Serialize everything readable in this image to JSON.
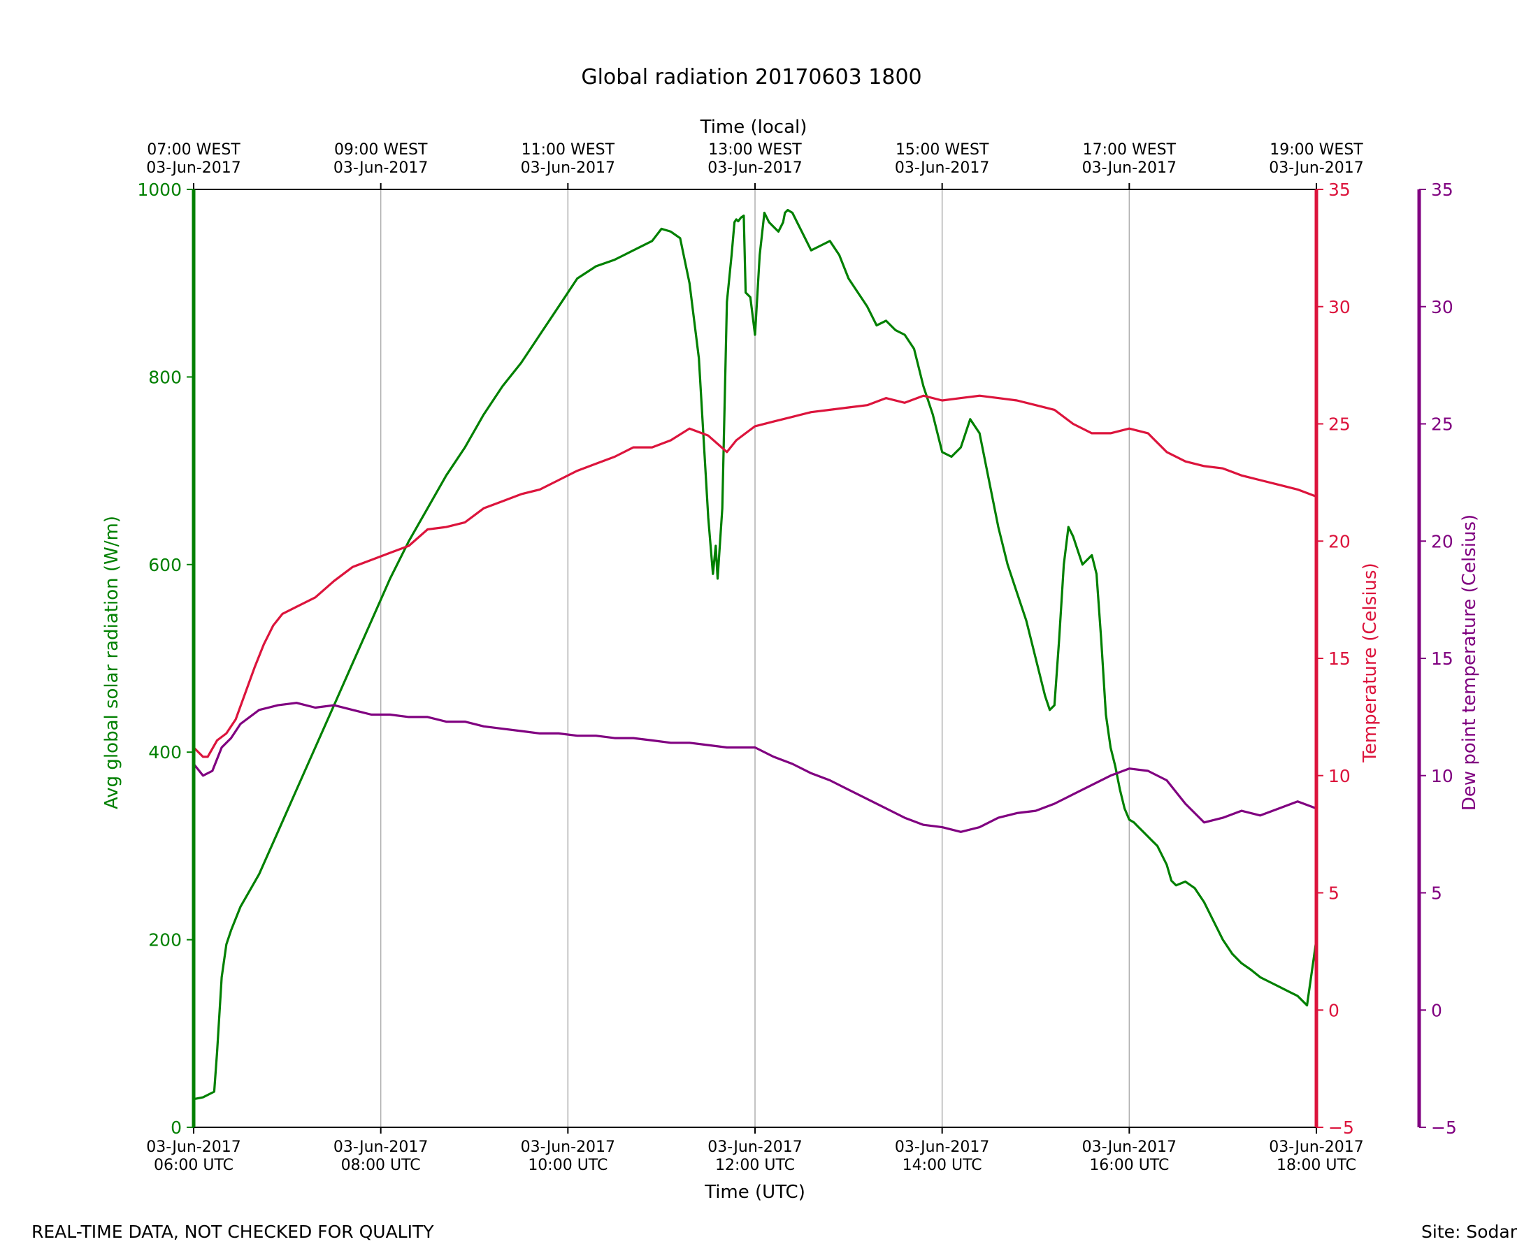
{
  "title": "Global radiation 20170603 1800",
  "footer": {
    "note": "REAL-TIME DATA, NOT CHECKED FOR QUALITY",
    "site": "Site: Sodar"
  },
  "colors": {
    "radiation": "#008000",
    "temperature": "#dc143c",
    "dewpoint": "#800080",
    "grid": "#b0b0b0"
  },
  "chart_data": {
    "type": "line",
    "title": "Global radiation 20170603 1800",
    "xlabel": "Time (UTC)",
    "x2label": "Time (local)",
    "xlim": [
      6,
      18
    ],
    "grid": "vertical",
    "xticks": [
      6,
      8,
      10,
      12,
      14,
      16,
      18
    ],
    "xtick_labels": [
      [
        "03-Jun-2017",
        "06:00 UTC"
      ],
      [
        "03-Jun-2017",
        "08:00 UTC"
      ],
      [
        "03-Jun-2017",
        "10:00 UTC"
      ],
      [
        "03-Jun-2017",
        "12:00 UTC"
      ],
      [
        "03-Jun-2017",
        "14:00 UTC"
      ],
      [
        "03-Jun-2017",
        "16:00 UTC"
      ],
      [
        "03-Jun-2017",
        "18:00 UTC"
      ]
    ],
    "x2tick_labels": [
      [
        "07:00 WEST",
        "03-Jun-2017"
      ],
      [
        "09:00 WEST",
        "03-Jun-2017"
      ],
      [
        "11:00 WEST",
        "03-Jun-2017"
      ],
      [
        "13:00 WEST",
        "03-Jun-2017"
      ],
      [
        "15:00 WEST",
        "03-Jun-2017"
      ],
      [
        "17:00 WEST",
        "03-Jun-2017"
      ],
      [
        "19:00 WEST",
        "03-Jun-2017"
      ]
    ],
    "axes": {
      "radiation": {
        "label": "Avg global solar radiation (W/m)",
        "ylim": [
          0,
          1000
        ],
        "ticks": [
          0,
          200,
          400,
          600,
          800,
          1000
        ]
      },
      "temperature": {
        "label": "Temperature (Celsius)",
        "ylim": [
          -5,
          35
        ],
        "ticks": [
          -5,
          0,
          5,
          10,
          15,
          20,
          25,
          30,
          35
        ],
        "tick_labels": [
          "−5",
          "0",
          "5",
          "10",
          "15",
          "20",
          "25",
          "30",
          "35"
        ]
      },
      "dewpoint": {
        "label": "Dew point temperature (Celsius)",
        "ylim": [
          -5,
          35
        ],
        "ticks": [
          -5,
          0,
          5,
          10,
          15,
          20,
          25,
          30,
          35
        ],
        "tick_labels": [
          "−5",
          "0",
          "5",
          "10",
          "15",
          "20",
          "25",
          "30",
          "35"
        ]
      }
    },
    "series": [
      {
        "name": "Avg global solar radiation",
        "axis": "radiation",
        "x": [
          6.0,
          6.1,
          6.22,
          6.25,
          6.3,
          6.35,
          6.4,
          6.5,
          6.7,
          6.9,
          7.1,
          7.3,
          7.5,
          7.7,
          7.9,
          8.1,
          8.3,
          8.5,
          8.7,
          8.9,
          9.1,
          9.3,
          9.5,
          9.7,
          9.9,
          10.1,
          10.3,
          10.5,
          10.7,
          10.9,
          11.0,
          11.1,
          11.2,
          11.3,
          11.4,
          11.5,
          11.55,
          11.58,
          11.6,
          11.65,
          11.7,
          11.75,
          11.78,
          11.8,
          11.82,
          11.85,
          11.88,
          11.9,
          11.95,
          12.0,
          12.05,
          12.1,
          12.15,
          12.2,
          12.25,
          12.3,
          12.32,
          12.35,
          12.4,
          12.45,
          12.5,
          12.6,
          12.7,
          12.8,
          12.9,
          13.0,
          13.1,
          13.2,
          13.3,
          13.4,
          13.5,
          13.6,
          13.7,
          13.8,
          13.9,
          14.0,
          14.1,
          14.2,
          14.3,
          14.4,
          14.5,
          14.6,
          14.7,
          14.8,
          14.9,
          15.0,
          15.1,
          15.15,
          15.2,
          15.25,
          15.3,
          15.35,
          15.4,
          15.45,
          15.5,
          15.6,
          15.65,
          15.7,
          15.75,
          15.8,
          15.85,
          15.9,
          15.95,
          16.0,
          16.05,
          16.1,
          16.15,
          16.2,
          16.25,
          16.3,
          16.35,
          16.4,
          16.45,
          16.5,
          16.6,
          16.7,
          16.8,
          16.9,
          17.0,
          17.1,
          17.2,
          17.3,
          17.4,
          17.5,
          17.6,
          17.7,
          17.8,
          17.9,
          18.0
        ],
        "values": [
          30,
          32,
          38,
          80,
          160,
          195,
          210,
          235,
          270,
          315,
          360,
          405,
          450,
          495,
          540,
          585,
          625,
          660,
          695,
          725,
          760,
          790,
          815,
          845,
          875,
          905,
          918,
          925,
          935,
          945,
          958,
          955,
          948,
          900,
          820,
          650,
          590,
          620,
          585,
          660,
          880,
          930,
          965,
          968,
          966,
          970,
          972,
          890,
          885,
          845,
          930,
          975,
          965,
          960,
          955,
          965,
          975,
          978,
          975,
          965,
          955,
          935,
          940,
          945,
          930,
          905,
          890,
          875,
          855,
          860,
          850,
          845,
          830,
          790,
          760,
          720,
          715,
          725,
          755,
          740,
          690,
          640,
          600,
          570,
          540,
          500,
          460,
          445,
          450,
          520,
          600,
          640,
          630,
          615,
          600,
          610,
          590,
          520,
          440,
          405,
          385,
          360,
          340,
          328,
          325,
          320,
          315,
          310,
          305,
          300,
          290,
          280,
          263,
          258,
          262,
          255,
          240,
          220,
          200,
          185,
          175,
          168,
          160,
          155,
          150,
          145,
          140,
          130,
          200
        ]
      },
      {
        "name": "Temperature",
        "axis": "temperature",
        "x": [
          6.0,
          6.1,
          6.15,
          6.25,
          6.35,
          6.45,
          6.55,
          6.65,
          6.75,
          6.85,
          6.95,
          7.1,
          7.3,
          7.5,
          7.7,
          7.9,
          8.1,
          8.3,
          8.5,
          8.7,
          8.9,
          9.1,
          9.3,
          9.5,
          9.7,
          9.9,
          10.1,
          10.3,
          10.5,
          10.7,
          10.9,
          11.1,
          11.3,
          11.5,
          11.7,
          11.8,
          11.9,
          12.0,
          12.2,
          12.4,
          12.6,
          12.8,
          13.0,
          13.2,
          13.4,
          13.6,
          13.8,
          14.0,
          14.2,
          14.4,
          14.6,
          14.8,
          15.0,
          15.2,
          15.4,
          15.6,
          15.8,
          16.0,
          16.2,
          16.4,
          16.6,
          16.8,
          17.0,
          17.2,
          17.4,
          17.6,
          17.8,
          18.0
        ],
        "values": [
          11.2,
          10.8,
          10.8,
          11.5,
          11.8,
          12.4,
          13.5,
          14.6,
          15.6,
          16.4,
          16.9,
          17.2,
          17.6,
          18.3,
          18.9,
          19.2,
          19.5,
          19.8,
          20.5,
          20.6,
          20.8,
          21.4,
          21.7,
          22.0,
          22.2,
          22.6,
          23.0,
          23.3,
          23.6,
          24.0,
          24.0,
          24.3,
          24.8,
          24.5,
          23.8,
          24.3,
          24.6,
          24.9,
          25.1,
          25.3,
          25.5,
          25.6,
          25.7,
          25.8,
          26.1,
          25.9,
          26.2,
          26.0,
          26.1,
          26.2,
          26.1,
          26.0,
          25.8,
          25.6,
          25.0,
          24.6,
          24.6,
          24.8,
          24.6,
          23.8,
          23.4,
          23.2,
          23.1,
          22.8,
          22.6,
          22.4,
          22.2,
          21.9
        ]
      },
      {
        "name": "Dew point temperature",
        "axis": "dewpoint",
        "x": [
          6.0,
          6.1,
          6.2,
          6.3,
          6.4,
          6.5,
          6.7,
          6.9,
          7.1,
          7.3,
          7.5,
          7.7,
          7.9,
          8.1,
          8.3,
          8.5,
          8.7,
          8.9,
          9.1,
          9.3,
          9.5,
          9.7,
          9.9,
          10.1,
          10.3,
          10.5,
          10.7,
          10.9,
          11.1,
          11.3,
          11.5,
          11.7,
          11.9,
          12.0,
          12.2,
          12.4,
          12.6,
          12.8,
          13.0,
          13.2,
          13.4,
          13.6,
          13.8,
          14.0,
          14.2,
          14.4,
          14.6,
          14.8,
          15.0,
          15.2,
          15.4,
          15.6,
          15.8,
          16.0,
          16.2,
          16.4,
          16.6,
          16.8,
          17.0,
          17.2,
          17.4,
          17.6,
          17.8,
          18.0
        ],
        "values": [
          10.5,
          10.0,
          10.2,
          11.2,
          11.6,
          12.2,
          12.8,
          13.0,
          13.1,
          12.9,
          13.0,
          12.8,
          12.6,
          12.6,
          12.5,
          12.5,
          12.3,
          12.3,
          12.1,
          12.0,
          11.9,
          11.8,
          11.8,
          11.7,
          11.7,
          11.6,
          11.6,
          11.5,
          11.4,
          11.4,
          11.3,
          11.2,
          11.2,
          11.2,
          10.8,
          10.5,
          10.1,
          9.8,
          9.4,
          9.0,
          8.6,
          8.2,
          7.9,
          7.8,
          7.6,
          7.8,
          8.2,
          8.4,
          8.5,
          8.8,
          9.2,
          9.6,
          10.0,
          10.3,
          10.2,
          9.8,
          8.8,
          8.0,
          8.2,
          8.5,
          8.3,
          8.6,
          8.9,
          8.6
        ]
      }
    ]
  }
}
